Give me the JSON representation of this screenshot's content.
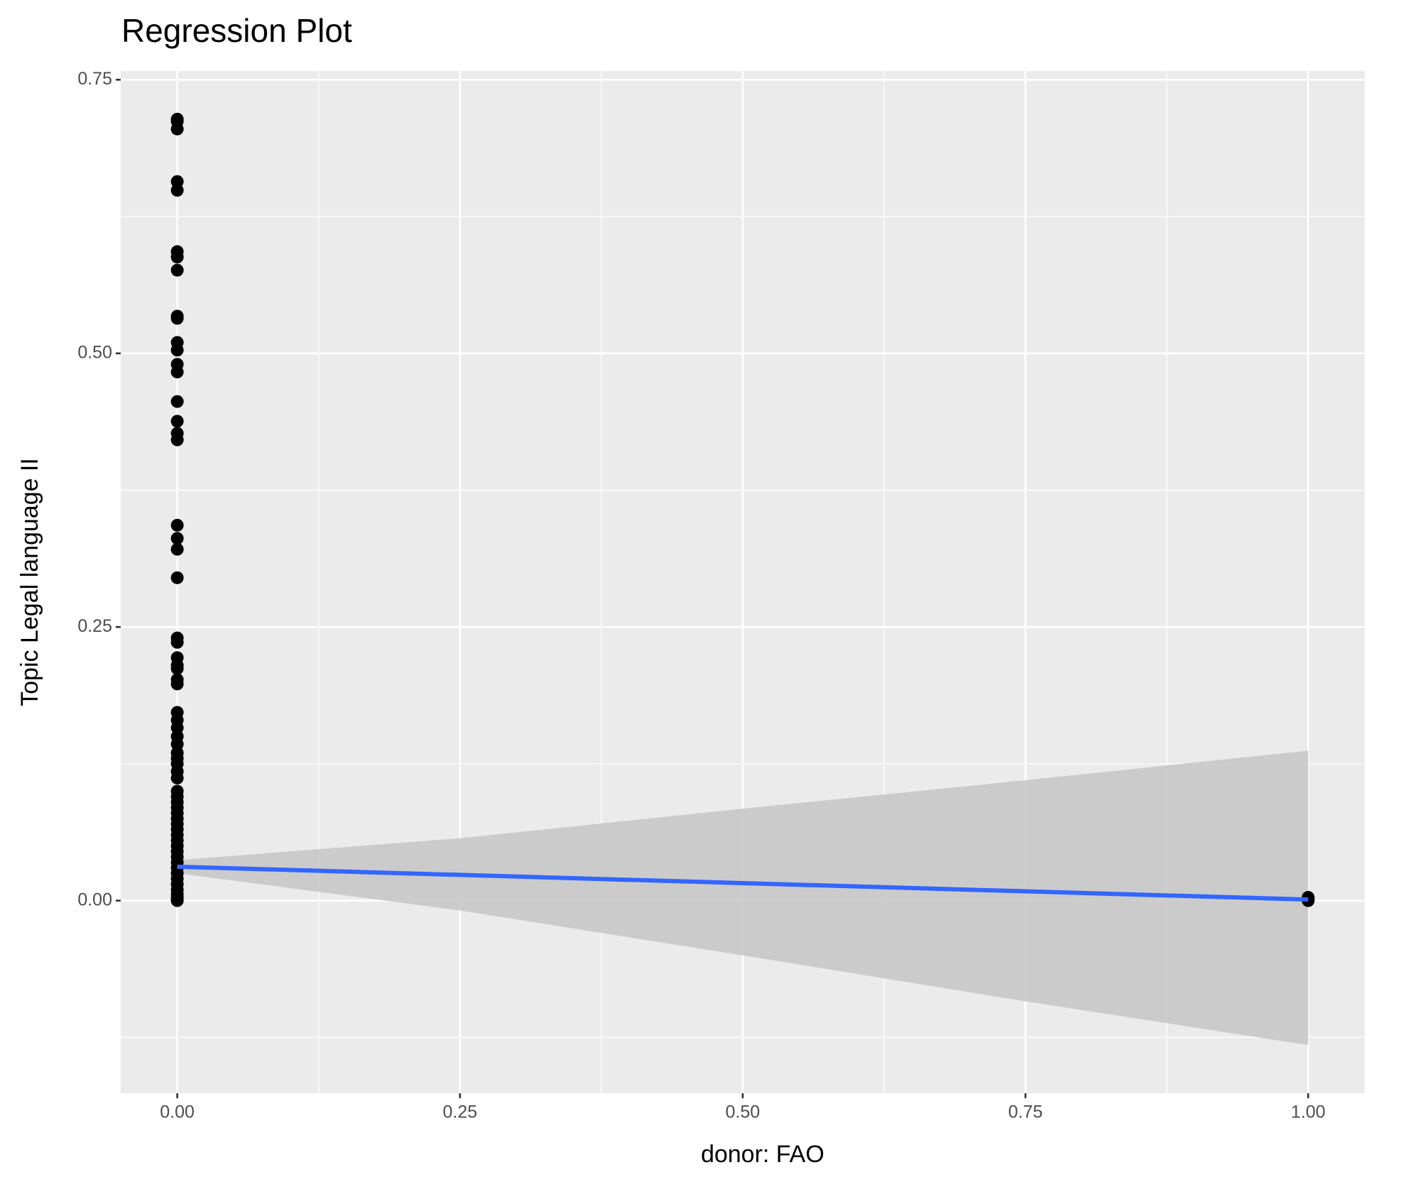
{
  "chart_data": {
    "type": "scatter",
    "title": "Regression Plot",
    "x_label": "donor: FAO",
    "y_label": "Topic Legal language II",
    "xlim": [
      -0.05,
      1.05
    ],
    "ylim": [
      -0.176,
      0.758
    ],
    "xticks": [
      {
        "value": 0,
        "label": "0.00"
      },
      {
        "value": 0.25,
        "label": "0.25"
      },
      {
        "value": 0.5,
        "label": "0.50"
      },
      {
        "value": 0.75,
        "label": "0.75"
      },
      {
        "value": 1,
        "label": "1.00"
      }
    ],
    "yticks": [
      {
        "value": 0,
        "label": "0.00"
      },
      {
        "value": 0.25,
        "label": "0.25"
      },
      {
        "value": 0.5,
        "label": "0.50"
      },
      {
        "value": 0.75,
        "label": "0.75"
      }
    ],
    "grid": true,
    "minor_grid": {
      "x": [
        0.125,
        0.375,
        0.625,
        0.875
      ],
      "y": [
        -0.125,
        0.125,
        0.375,
        0.625
      ]
    },
    "points": {
      "color": "#000000",
      "x": [
        0,
        0,
        0,
        0,
        0,
        0,
        0,
        0,
        0,
        0,
        0,
        0,
        0,
        0,
        0,
        0,
        0,
        0,
        0,
        0,
        0,
        0,
        0,
        0,
        0,
        0,
        0,
        0,
        0,
        0,
        0,
        0,
        0,
        0,
        0,
        0,
        0,
        0,
        0,
        0,
        0,
        0,
        0,
        0,
        0,
        0,
        0,
        0,
        0,
        0,
        0,
        0,
        0,
        0,
        0,
        0,
        0,
        0,
        0,
        0,
        0,
        0,
        1,
        1,
        1
      ],
      "y": [
        0.714,
        0.712,
        0.705,
        0.657,
        0.649,
        0.593,
        0.588,
        0.576,
        0.534,
        0.532,
        0.51,
        0.503,
        0.49,
        0.483,
        0.456,
        0.438,
        0.427,
        0.421,
        0.343,
        0.331,
        0.321,
        0.295,
        0.24,
        0.236,
        0.222,
        0.215,
        0.212,
        0.202,
        0.198,
        0.172,
        0.165,
        0.158,
        0.15,
        0.143,
        0.135,
        0.13,
        0.125,
        0.118,
        0.112,
        0.1,
        0.095,
        0.09,
        0.085,
        0.08,
        0.075,
        0.07,
        0.065,
        0.06,
        0.055,
        0.05,
        0.045,
        0.04,
        0.035,
        0.03,
        0.025,
        0.02,
        0.015,
        0.01,
        0.006,
        0.003,
        0.001,
        0,
        0.003,
        0.001,
        0
      ]
    },
    "fit": {
      "color": "#3366ff",
      "band_color": "#c8c8c8",
      "x": [
        0,
        0.25,
        0.5,
        0.75,
        1
      ],
      "y": [
        0.031,
        0.0235,
        0.016,
        0.0085,
        0.001
      ],
      "lower": [
        0.025,
        -0.009,
        -0.05,
        -0.092,
        -0.132
      ],
      "upper": [
        0.037,
        0.057,
        0.084,
        0.11,
        0.137
      ]
    }
  }
}
